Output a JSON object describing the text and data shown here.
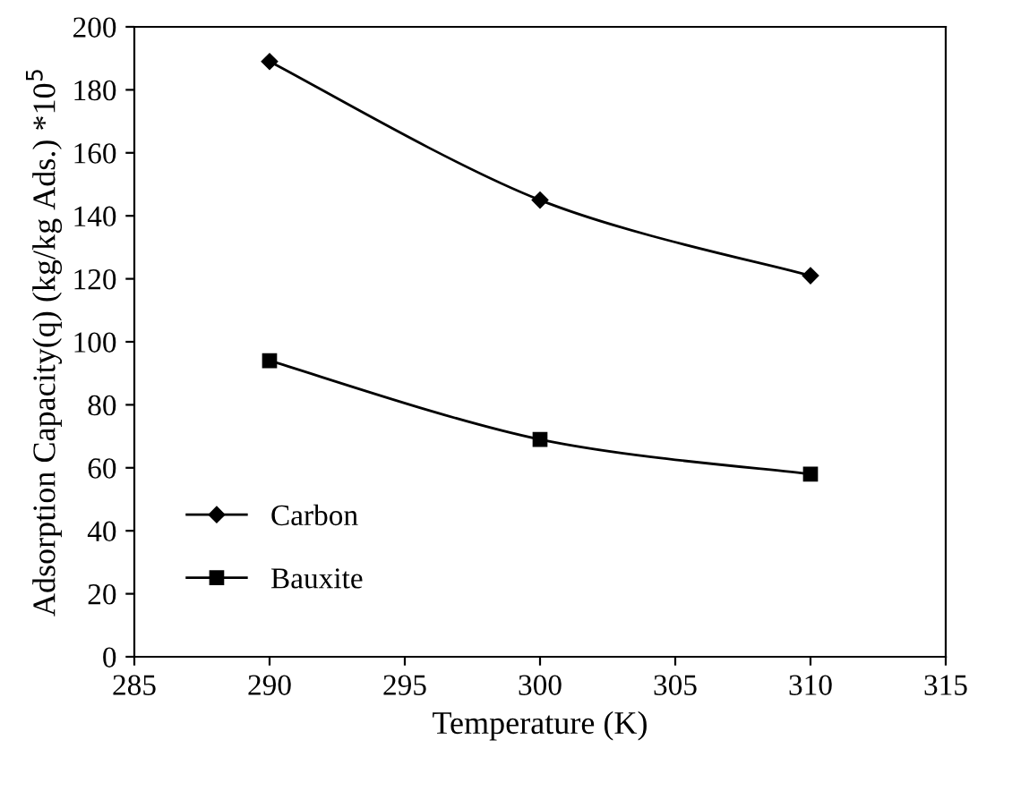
{
  "chart_data": {
    "type": "line",
    "xlabel": "Temperature (K)",
    "ylabel": "Adsorption Capacity(q) (kg/kg Ads.) *10$^{5}$",
    "x": [
      290,
      300,
      310
    ],
    "series": [
      {
        "name": "Carbon",
        "color": "#000000",
        "marker": "diamond",
        "values": [
          189,
          145,
          121
        ]
      },
      {
        "name": "Bauxite",
        "color": "#000000",
        "marker": "square",
        "values": [
          94,
          69,
          58
        ]
      }
    ],
    "xlim": [
      285,
      315
    ],
    "xticks": [
      285,
      290,
      295,
      300,
      305,
      310,
      315
    ],
    "ylim": [
      0,
      200
    ],
    "yticks": [
      0,
      20,
      40,
      60,
      80,
      100,
      120,
      140,
      160,
      180,
      200
    ],
    "legend": "bottom left",
    "line_style": "solid"
  }
}
